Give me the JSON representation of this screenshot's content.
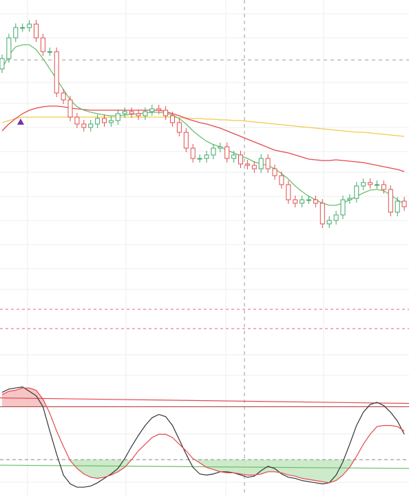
{
  "chart_data": [
    {
      "type": "candlestick",
      "ylim": [
        0,
        720
      ],
      "up_color": "#3fa66a",
      "down_color": "#e04c4c",
      "open": [
        620,
        635,
        665,
        680,
        680,
        685,
        665,
        645,
        645,
        585,
        575,
        550,
        540,
        535,
        540,
        548,
        542,
        545,
        555,
        558,
        555,
        552,
        558,
        562,
        560,
        552,
        542,
        528,
        505,
        490,
        490,
        495,
        505,
        507,
        490,
        495,
        482,
        480,
        475,
        490,
        475,
        465,
        452,
        430,
        425,
        430,
        430,
        425,
        395,
        400,
        408,
        430,
        432,
        450,
        455,
        452,
        452,
        445,
        412,
        428
      ],
      "high": [
        641,
        671,
        686,
        686,
        691,
        691,
        671,
        651,
        651,
        591,
        581,
        556,
        546,
        546,
        554,
        554,
        551,
        561,
        564,
        564,
        561,
        564,
        568,
        568,
        566,
        558,
        548,
        534,
        511,
        496,
        501,
        511,
        513,
        513,
        501,
        501,
        488,
        486,
        496,
        496,
        481,
        471,
        458,
        436,
        436,
        436,
        436,
        431,
        406,
        414,
        436,
        438,
        456,
        461,
        461,
        458,
        458,
        451,
        434,
        434
      ],
      "low": [
        614,
        629,
        659,
        674,
        674,
        659,
        639,
        639,
        579,
        569,
        544,
        534,
        529,
        529,
        534,
        536,
        536,
        539,
        549,
        549,
        546,
        546,
        552,
        554,
        546,
        536,
        522,
        499,
        484,
        484,
        484,
        489,
        499,
        484,
        484,
        476,
        474,
        469,
        469,
        469,
        459,
        446,
        424,
        419,
        419,
        424,
        419,
        389,
        389,
        394,
        402,
        424,
        426,
        444,
        446,
        446,
        439,
        406,
        406,
        414
      ],
      "close": [
        635,
        665,
        680,
        680,
        685,
        665,
        645,
        645,
        585,
        575,
        550,
        540,
        535,
        540,
        548,
        542,
        545,
        555,
        558,
        555,
        552,
        558,
        562,
        560,
        552,
        542,
        528,
        505,
        490,
        490,
        495,
        505,
        507,
        490,
        495,
        482,
        480,
        475,
        490,
        475,
        465,
        452,
        430,
        425,
        430,
        430,
        425,
        395,
        400,
        408,
        430,
        432,
        450,
        455,
        452,
        452,
        445,
        412,
        428,
        420
      ],
      "series": [
        {
          "color": "#f2c94c",
          "values": [
            542,
            545,
            548,
            550,
            550,
            550,
            550,
            550,
            550,
            550,
            550,
            550,
            550,
            550,
            550,
            550,
            550,
            550,
            550,
            550,
            550,
            550,
            550,
            550,
            550,
            550,
            549,
            549,
            548,
            548,
            547,
            547,
            546,
            546,
            545,
            545,
            544,
            543,
            542,
            541,
            540,
            539,
            538,
            537,
            536,
            535,
            534,
            533,
            532,
            531,
            530,
            529,
            528,
            528,
            527,
            526,
            525,
            524,
            523,
            522
          ]
        },
        {
          "color": "#e5484d",
          "values": [
            530,
            540,
            548,
            555,
            560,
            563,
            565,
            566,
            566,
            565,
            563,
            562,
            561,
            560,
            560,
            560,
            560,
            560,
            560,
            560,
            560,
            560,
            560,
            560,
            558,
            555,
            552,
            548,
            545,
            542,
            540,
            537,
            534,
            530,
            526,
            522,
            518,
            514,
            510,
            506,
            502,
            500,
            498,
            495,
            492,
            489,
            488,
            487,
            487,
            488,
            487,
            486,
            485,
            484,
            482,
            480,
            478,
            476,
            474,
            471
          ]
        },
        {
          "color": "#6cbf6c",
          "values": [
            620,
            640,
            652,
            655,
            655,
            648,
            635,
            620,
            605,
            590,
            575,
            565,
            560,
            557,
            555,
            553,
            552,
            552,
            553,
            554,
            555,
            556,
            557,
            557,
            556,
            553,
            548,
            540,
            530,
            522,
            515,
            510,
            507,
            502,
            498,
            494,
            490,
            485,
            482,
            480,
            475,
            468,
            460,
            450,
            442,
            435,
            430,
            425,
            422,
            422,
            425,
            430,
            435,
            440,
            444,
            445,
            443,
            437,
            430,
            424
          ]
        }
      ]
    },
    {
      "type": "oscillator",
      "ylim": [
        0,
        100
      ],
      "levels": [
        81,
        33
      ],
      "upper_fill": "#f4b8b8",
      "lower_fill": "#c8e8c4",
      "trend_lines": [
        {
          "color": "#e5484d",
          "start": 89,
          "end": 84
        },
        {
          "color": "#6cbf6c",
          "start": 28,
          "end": 25
        }
      ],
      "series": [
        {
          "color": "#333333",
          "values": [
            94,
            97,
            98,
            99,
            95,
            91,
            81,
            59,
            38,
            19,
            11,
            8,
            8,
            9,
            12,
            16,
            20,
            25,
            34,
            45,
            55,
            64,
            71,
            74,
            72,
            64,
            51,
            38,
            26,
            20,
            19,
            20,
            22,
            22,
            21,
            19,
            17,
            18,
            23,
            27,
            25,
            20,
            17,
            16,
            14,
            13,
            12,
            11,
            12,
            19,
            31,
            47,
            64,
            76,
            83,
            85,
            82,
            76,
            68,
            56
          ]
        },
        {
          "color": "#e5484d",
          "values": [
            92,
            95,
            96,
            98,
            98,
            96,
            88,
            75,
            59,
            45,
            32,
            25,
            20,
            17,
            16,
            17,
            19,
            22,
            26,
            33,
            41,
            47,
            53,
            56,
            56,
            53,
            47,
            41,
            34,
            30,
            26,
            24,
            22,
            21,
            21,
            20,
            19,
            19,
            20,
            22,
            22,
            21,
            19,
            18,
            16,
            15,
            14,
            13,
            12,
            14,
            19,
            26,
            36,
            47,
            56,
            63,
            64,
            64,
            63,
            59
          ]
        }
      ]
    }
  ]
}
